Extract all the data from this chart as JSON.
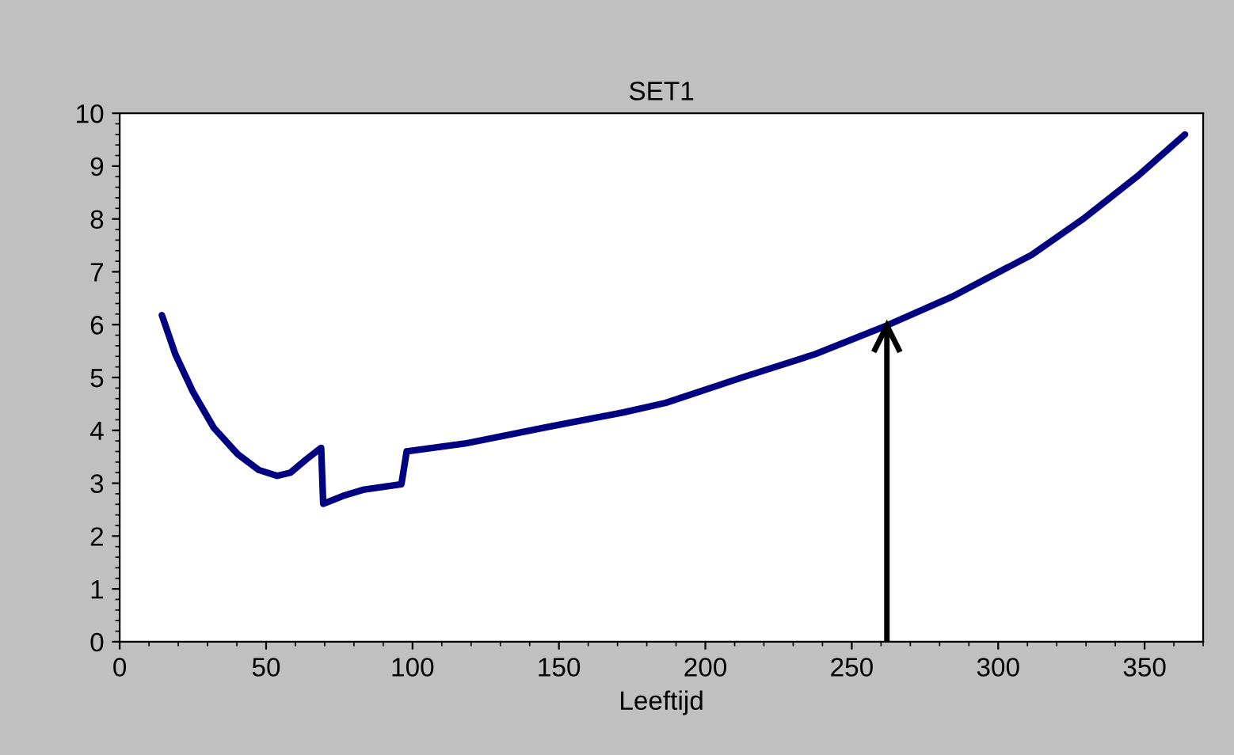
{
  "chart_data": {
    "type": "line",
    "title": "SET1",
    "xlabel": "Leeftijd",
    "series": [
      {
        "color": "#000080",
        "x": [
          14.4,
          19,
          24.9,
          32.1,
          40.3,
          47.5,
          53.8,
          58.3,
          63.7,
          68.8,
          69.5,
          76.3,
          83.5,
          96.2,
          98,
          117.9,
          145,
          172,
          186.5,
          212,
          237.4,
          261.8,
          284.3,
          311.4,
          329.5,
          347.6,
          363.8
        ],
        "values": [
          6.18,
          5.44,
          4.74,
          4.05,
          3.55,
          3.25,
          3.14,
          3.2,
          3.45,
          3.67,
          2.61,
          2.76,
          2.88,
          2.98,
          3.6,
          3.75,
          4.05,
          4.34,
          4.52,
          4.99,
          5.44,
          5.98,
          6.53,
          7.32,
          8.02,
          8.81,
          9.6
        ]
      },
      {
        "color": "#000000",
        "x": [
          262,
          262
        ],
        "values": [
          0,
          5.98
        ]
      }
    ],
    "xlim": [
      0,
      370
    ],
    "ylim": [
      0,
      10
    ],
    "xticks": [
      0,
      50,
      100,
      150,
      200,
      250,
      300,
      350
    ],
    "yticks": [
      0,
      1,
      2,
      3,
      4,
      5,
      6,
      7,
      8,
      9,
      10
    ],
    "grid": false,
    "legend": false
  }
}
